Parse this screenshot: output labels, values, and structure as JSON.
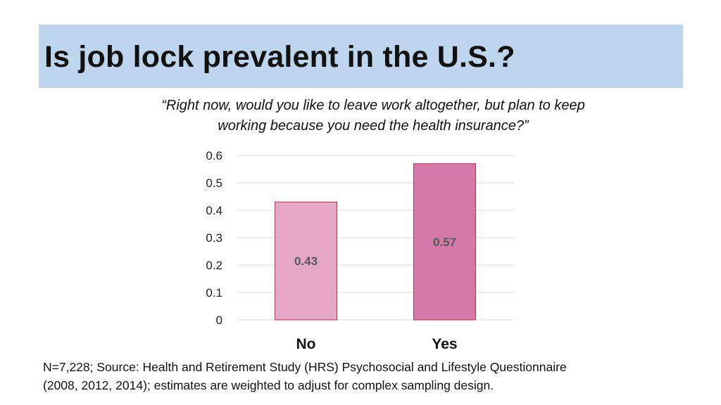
{
  "slide": {
    "title": "Is job lock prevalent in the U.S.?",
    "question_line1": "“Right now, would you like to leave work altogether, but plan to keep",
    "question_line2": "working because you need the health insurance?”",
    "footnote_line1": "N=7,228; Source: Health and Retirement Study (HRS) Psychosocial and Lifestyle Questionnaire",
    "footnote_line2": "(2008, 2012, 2014); estimates are weighted to adjust for complex sampling design."
  },
  "chart_data": {
    "type": "bar",
    "categories": [
      "No",
      "Yes"
    ],
    "values": [
      0.43,
      0.57
    ],
    "data_labels": [
      "0.43",
      "0.57"
    ],
    "title": "",
    "xlabel": "",
    "ylabel": "",
    "ylim": [
      0,
      0.6
    ],
    "yticks": [
      0,
      0.1,
      0.2,
      0.3,
      0.4,
      0.5,
      0.6
    ],
    "ytick_labels": [
      "0",
      "0.1",
      "0.2",
      "0.3",
      "0.4",
      "0.5",
      "0.6"
    ],
    "grid": true,
    "legend": "none",
    "colors": {
      "bar_fills": [
        "#e4a6c5",
        "#d57aa8"
      ],
      "bar_stroke": "#c0304a",
      "grid": "#d9d9d9",
      "label": "#595959"
    }
  }
}
